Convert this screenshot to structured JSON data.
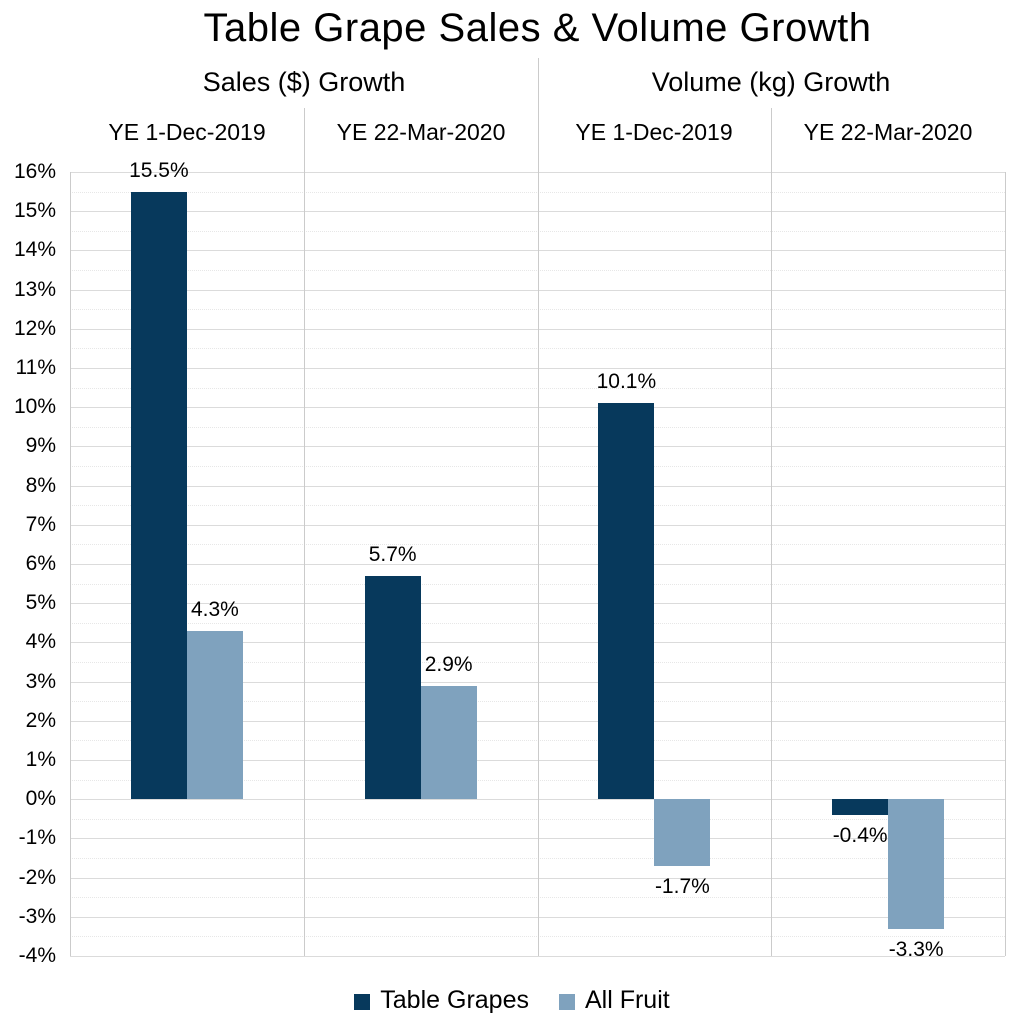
{
  "title": "Table Grape Sales & Volume Growth",
  "chart_data": {
    "type": "bar",
    "title": "Table Grape Sales & Volume Growth",
    "sections": [
      {
        "label": "Sales ($) Growth",
        "categories": [
          "YE 1-Dec-2019",
          "YE 22-Mar-2020"
        ]
      },
      {
        "label": "Volume (kg) Growth",
        "categories": [
          "YE 1-Dec-2019",
          "YE 22-Mar-2020"
        ]
      }
    ],
    "categories": [
      "Sales YE 1-Dec-2019",
      "Sales YE 22-Mar-2020",
      "Volume YE 1-Dec-2019",
      "Volume YE 22-Mar-2020"
    ],
    "series": [
      {
        "name": "Table Grapes",
        "color": "#07395C",
        "values": [
          15.5,
          5.7,
          10.1,
          -0.4
        ],
        "labels": [
          "15.5%",
          "5.7%",
          "10.1%",
          "-0.4%"
        ]
      },
      {
        "name": "All Fruit",
        "color": "#7FA2BE",
        "values": [
          4.3,
          2.9,
          -1.7,
          -3.3
        ],
        "labels": [
          "4.3%",
          "2.9%",
          "-1.7%",
          "-3.3%"
        ]
      }
    ],
    "ylim": [
      -4,
      16
    ],
    "ytick_step": 1,
    "ytick_labels": [
      "16%",
      "15%",
      "14%",
      "13%",
      "12%",
      "11%",
      "10%",
      "9%",
      "8%",
      "7%",
      "6%",
      "5%",
      "4%",
      "3%",
      "2%",
      "1%",
      "0%",
      "-1%",
      "-2%",
      "-3%",
      "-4%"
    ],
    "grid": {
      "major_interval": 1,
      "minor_interval": 0.5,
      "major_style": "solid",
      "minor_style": "dotted",
      "major_color": "#DBDBDB",
      "minor_color": "#E7E7E7",
      "divider_color": "#CBCBCB"
    },
    "legend_position": "bottom"
  },
  "legend": {
    "items": [
      {
        "label": "Table Grapes",
        "color": "#07395C"
      },
      {
        "label": "All Fruit",
        "color": "#7FA2BE"
      }
    ]
  }
}
